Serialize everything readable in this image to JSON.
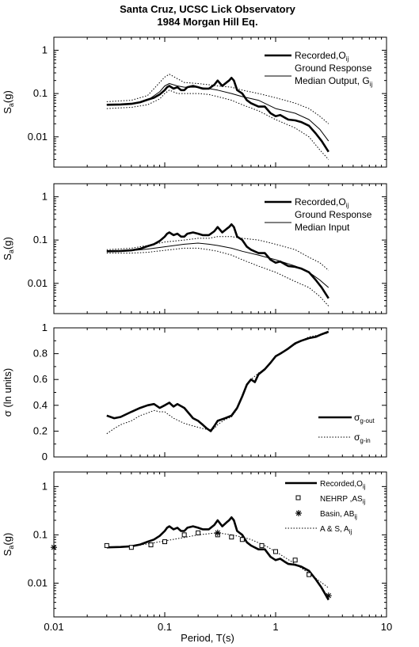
{
  "title": {
    "line1": "Santa Cruz, UCSC Lick Observatory",
    "line2": "1984 Morgan Hill Eq."
  },
  "xaxis": {
    "label": "Period, T(s)",
    "scale": "log",
    "range": [
      0.01,
      10
    ],
    "ticks": [
      {
        "value": 0.01,
        "label": "0.01"
      },
      {
        "value": 0.1,
        "label": "0.1"
      },
      {
        "value": 1,
        "label": "1"
      },
      {
        "value": 10,
        "label": "10"
      }
    ]
  },
  "chart_data": [
    {
      "type": "line",
      "yscale": "log",
      "ylim": [
        0.002,
        2
      ],
      "ylabel": "Sa(g)",
      "yticks": [
        {
          "value": 1,
          "label": "1"
        },
        {
          "value": 0.1,
          "label": "0.1"
        },
        {
          "value": 0.01,
          "label": "0.01"
        }
      ],
      "legend": {
        "placement": "top-right",
        "entries": [
          {
            "text": "Recorded,O",
            "sub": "ij",
            "style": "thick"
          },
          {
            "text": "Ground Response",
            "text2": "Median Output, G",
            "sub": "ij",
            "style": "thin"
          }
        ]
      },
      "series": [
        {
          "style": "thick",
          "x": [
            0.03,
            0.04,
            0.05,
            0.06,
            0.07,
            0.08,
            0.09,
            0.1,
            0.105,
            0.11,
            0.12,
            0.13,
            0.14,
            0.15,
            0.16,
            0.18,
            0.2,
            0.22,
            0.25,
            0.28,
            0.3,
            0.33,
            0.36,
            0.38,
            0.4,
            0.42,
            0.45,
            0.5,
            0.55,
            0.6,
            0.7,
            0.8,
            0.9,
            1.0,
            1.1,
            1.2,
            1.3,
            1.5,
            1.7,
            2.0,
            2.3,
            2.6,
            3.0
          ],
          "y": [
            0.055,
            0.056,
            0.058,
            0.063,
            0.072,
            0.08,
            0.095,
            0.12,
            0.14,
            0.15,
            0.13,
            0.14,
            0.12,
            0.12,
            0.14,
            0.15,
            0.14,
            0.13,
            0.13,
            0.16,
            0.2,
            0.15,
            0.18,
            0.2,
            0.23,
            0.2,
            0.12,
            0.1,
            0.07,
            0.06,
            0.05,
            0.05,
            0.035,
            0.03,
            0.032,
            0.028,
            0.025,
            0.024,
            0.022,
            0.018,
            0.012,
            0.008,
            0.0045
          ]
        },
        {
          "style": "thin",
          "x": [
            0.03,
            0.05,
            0.07,
            0.09,
            0.1,
            0.11,
            0.13,
            0.15,
            0.2,
            0.25,
            0.3,
            0.4,
            0.5,
            0.7,
            1.0,
            1.5,
            2.0,
            2.5,
            3.0
          ],
          "y": [
            0.055,
            0.058,
            0.07,
            0.11,
            0.15,
            0.17,
            0.15,
            0.14,
            0.14,
            0.13,
            0.12,
            0.1,
            0.085,
            0.07,
            0.045,
            0.035,
            0.025,
            0.015,
            0.008
          ]
        },
        {
          "style": "dotted",
          "x": [
            0.03,
            0.05,
            0.07,
            0.09,
            0.1,
            0.11,
            0.13,
            0.15,
            0.2,
            0.25,
            0.3,
            0.4,
            0.5,
            0.7,
            1.0,
            1.5,
            2.0,
            2.5,
            3.0
          ],
          "y": [
            0.065,
            0.07,
            0.09,
            0.18,
            0.24,
            0.28,
            0.22,
            0.18,
            0.17,
            0.16,
            0.15,
            0.14,
            0.12,
            0.1,
            0.08,
            0.06,
            0.045,
            0.03,
            0.02
          ]
        },
        {
          "style": "dotted",
          "x": [
            0.03,
            0.05,
            0.07,
            0.09,
            0.1,
            0.11,
            0.13,
            0.15,
            0.2,
            0.25,
            0.3,
            0.4,
            0.5,
            0.7,
            1.0,
            1.5,
            2.0,
            2.5,
            3.0
          ],
          "y": [
            0.045,
            0.048,
            0.055,
            0.075,
            0.1,
            0.12,
            0.1,
            0.1,
            0.1,
            0.095,
            0.085,
            0.07,
            0.055,
            0.04,
            0.025,
            0.016,
            0.01,
            0.005,
            0.003
          ]
        }
      ]
    },
    {
      "type": "line",
      "yscale": "log",
      "ylim": [
        0.002,
        2
      ],
      "ylabel": "Sa(g)",
      "yticks": [
        {
          "value": 1,
          "label": "1"
        },
        {
          "value": 0.1,
          "label": "0.1"
        },
        {
          "value": 0.01,
          "label": "0.01"
        }
      ],
      "legend": {
        "placement": "top-right",
        "entries": [
          {
            "text": "Recorded,O",
            "sub": "ij",
            "style": "thick"
          },
          {
            "text": "Ground Response",
            "text2": "Median Input",
            "style": "thin"
          }
        ]
      },
      "series": [
        {
          "style": "thick",
          "x": [
            0.03,
            0.04,
            0.05,
            0.06,
            0.07,
            0.08,
            0.09,
            0.1,
            0.105,
            0.11,
            0.12,
            0.13,
            0.14,
            0.15,
            0.16,
            0.18,
            0.2,
            0.22,
            0.25,
            0.28,
            0.3,
            0.33,
            0.36,
            0.38,
            0.4,
            0.42,
            0.45,
            0.5,
            0.55,
            0.6,
            0.7,
            0.8,
            0.9,
            1.0,
            1.1,
            1.2,
            1.3,
            1.5,
            1.7,
            2.0,
            2.3,
            2.6,
            3.0
          ],
          "y": [
            0.055,
            0.056,
            0.058,
            0.063,
            0.072,
            0.08,
            0.095,
            0.12,
            0.14,
            0.15,
            0.13,
            0.14,
            0.12,
            0.12,
            0.14,
            0.15,
            0.14,
            0.13,
            0.13,
            0.16,
            0.2,
            0.15,
            0.18,
            0.2,
            0.23,
            0.2,
            0.12,
            0.1,
            0.07,
            0.06,
            0.05,
            0.05,
            0.035,
            0.03,
            0.032,
            0.028,
            0.025,
            0.024,
            0.022,
            0.018,
            0.012,
            0.008,
            0.0045
          ]
        },
        {
          "style": "thin",
          "x": [
            0.03,
            0.05,
            0.07,
            0.1,
            0.15,
            0.2,
            0.25,
            0.3,
            0.4,
            0.5,
            0.7,
            1.0,
            1.5,
            2.0,
            2.5,
            3.0
          ],
          "y": [
            0.055,
            0.057,
            0.062,
            0.07,
            0.08,
            0.085,
            0.08,
            0.075,
            0.065,
            0.055,
            0.045,
            0.035,
            0.025,
            0.018,
            0.012,
            0.008
          ]
        },
        {
          "style": "dotted",
          "x": [
            0.03,
            0.05,
            0.07,
            0.1,
            0.15,
            0.2,
            0.25,
            0.3,
            0.4,
            0.5,
            0.7,
            1.0,
            1.5,
            2.0,
            2.5,
            3.0
          ],
          "y": [
            0.06,
            0.065,
            0.075,
            0.09,
            0.1,
            0.11,
            0.11,
            0.12,
            0.12,
            0.11,
            0.1,
            0.08,
            0.06,
            0.04,
            0.03,
            0.02
          ]
        },
        {
          "style": "dotted",
          "x": [
            0.03,
            0.05,
            0.07,
            0.1,
            0.15,
            0.2,
            0.25,
            0.3,
            0.4,
            0.5,
            0.7,
            1.0,
            1.5,
            2.0,
            2.5,
            3.0
          ],
          "y": [
            0.05,
            0.05,
            0.052,
            0.058,
            0.065,
            0.065,
            0.06,
            0.055,
            0.045,
            0.035,
            0.025,
            0.018,
            0.011,
            0.008,
            0.005,
            0.003
          ]
        }
      ]
    },
    {
      "type": "line",
      "yscale": "linear",
      "ylim": [
        0,
        1
      ],
      "ylabel": "σ (ln units)",
      "yticks": [
        {
          "value": 0,
          "label": "0"
        },
        {
          "value": 0.2,
          "label": "0.2"
        },
        {
          "value": 0.4,
          "label": "0.4"
        },
        {
          "value": 0.6,
          "label": "0.6"
        },
        {
          "value": 0.8,
          "label": "0.8"
        },
        {
          "value": 1,
          "label": "1"
        }
      ],
      "legend": {
        "placement": "bottom-right",
        "entries": [
          {
            "text": "σ",
            "sub": "g-out",
            "style": "thick"
          },
          {
            "text": "σ",
            "sub": "g-in",
            "style": "dotted"
          }
        ]
      },
      "series": [
        {
          "style": "thick",
          "x": [
            0.03,
            0.035,
            0.04,
            0.05,
            0.06,
            0.07,
            0.08,
            0.09,
            0.1,
            0.11,
            0.12,
            0.13,
            0.15,
            0.18,
            0.2,
            0.22,
            0.24,
            0.26,
            0.28,
            0.3,
            0.35,
            0.4,
            0.45,
            0.5,
            0.55,
            0.6,
            0.65,
            0.7,
            0.8,
            0.9,
            1.0,
            1.1,
            1.2,
            1.3,
            1.5,
            1.7,
            2.0,
            2.3,
            2.6,
            3.0
          ],
          "y": [
            0.32,
            0.3,
            0.31,
            0.35,
            0.38,
            0.4,
            0.41,
            0.38,
            0.4,
            0.42,
            0.39,
            0.41,
            0.38,
            0.3,
            0.28,
            0.25,
            0.22,
            0.2,
            0.24,
            0.28,
            0.3,
            0.32,
            0.38,
            0.47,
            0.56,
            0.6,
            0.58,
            0.64,
            0.68,
            0.73,
            0.78,
            0.8,
            0.82,
            0.84,
            0.88,
            0.9,
            0.92,
            0.93,
            0.95,
            0.97
          ]
        },
        {
          "style": "dotted",
          "x": [
            0.03,
            0.035,
            0.04,
            0.05,
            0.06,
            0.07,
            0.08,
            0.09,
            0.1,
            0.12,
            0.15,
            0.18,
            0.2,
            0.22,
            0.25,
            0.28,
            0.3,
            0.35,
            0.4,
            0.45,
            0.5,
            0.55,
            0.6,
            0.7,
            0.8,
            1.0,
            1.3,
            1.7,
            2.0,
            3.0
          ],
          "y": [
            0.18,
            0.22,
            0.25,
            0.28,
            0.32,
            0.34,
            0.36,
            0.35,
            0.35,
            0.3,
            0.26,
            0.24,
            0.23,
            0.22,
            0.21,
            0.22,
            0.25,
            0.29,
            0.31,
            0.37,
            0.48,
            0.57,
            0.6,
            0.65,
            0.68,
            0.78,
            0.84,
            0.9,
            0.93,
            0.96
          ]
        }
      ]
    },
    {
      "type": "line",
      "yscale": "log",
      "ylim": [
        0.002,
        2
      ],
      "ylabel": "Sa(g)",
      "yticks": [
        {
          "value": 1,
          "label": "1"
        },
        {
          "value": 0.1,
          "label": "0.1"
        },
        {
          "value": 0.01,
          "label": "0.01"
        }
      ],
      "legend": {
        "placement": "top-right",
        "entries": [
          {
            "text": "Recorded,O",
            "sub": "ij",
            "style": "thick"
          },
          {
            "text": "NEHRP ,AS",
            "sub": "ij",
            "style": "square"
          },
          {
            "text": "Basin, AB",
            "sub": "ij",
            "style": "star"
          },
          {
            "text": "A & S, A",
            "sub": "ij",
            "style": "dotted"
          }
        ]
      },
      "series": [
        {
          "style": "thick",
          "x": [
            0.03,
            0.04,
            0.05,
            0.06,
            0.07,
            0.08,
            0.09,
            0.1,
            0.105,
            0.11,
            0.12,
            0.13,
            0.14,
            0.15,
            0.16,
            0.18,
            0.2,
            0.22,
            0.25,
            0.28,
            0.3,
            0.33,
            0.36,
            0.38,
            0.4,
            0.42,
            0.45,
            0.5,
            0.55,
            0.6,
            0.7,
            0.8,
            0.9,
            1.0,
            1.1,
            1.2,
            1.3,
            1.5,
            1.7,
            2.0,
            2.3,
            2.6,
            3.0
          ],
          "y": [
            0.055,
            0.056,
            0.058,
            0.063,
            0.072,
            0.08,
            0.095,
            0.12,
            0.14,
            0.15,
            0.13,
            0.14,
            0.12,
            0.12,
            0.14,
            0.15,
            0.14,
            0.13,
            0.13,
            0.16,
            0.2,
            0.15,
            0.18,
            0.2,
            0.23,
            0.2,
            0.12,
            0.1,
            0.07,
            0.06,
            0.05,
            0.05,
            0.035,
            0.03,
            0.032,
            0.028,
            0.025,
            0.024,
            0.022,
            0.018,
            0.012,
            0.008,
            0.0045
          ]
        },
        {
          "style": "dotted",
          "x": [
            0.03,
            0.05,
            0.07,
            0.1,
            0.15,
            0.2,
            0.3,
            0.4,
            0.5,
            0.6,
            0.8,
            1.0,
            1.5,
            2.0,
            3.0
          ],
          "y": [
            0.055,
            0.058,
            0.065,
            0.075,
            0.088,
            0.1,
            0.11,
            0.1,
            0.09,
            0.08,
            0.06,
            0.045,
            0.025,
            0.016,
            0.008
          ]
        },
        {
          "style": "square",
          "x": [
            0.03,
            0.05,
            0.075,
            0.1,
            0.15,
            0.2,
            0.3,
            0.4,
            0.5,
            0.75,
            1.0,
            1.5,
            2.0
          ],
          "y": [
            0.06,
            0.055,
            0.062,
            0.072,
            0.1,
            0.11,
            0.1,
            0.09,
            0.08,
            0.06,
            0.045,
            0.03,
            0.015
          ]
        },
        {
          "style": "star",
          "x": [
            0.01,
            0.3,
            3.0
          ],
          "y": [
            0.055,
            0.11,
            0.0055
          ]
        }
      ]
    }
  ]
}
